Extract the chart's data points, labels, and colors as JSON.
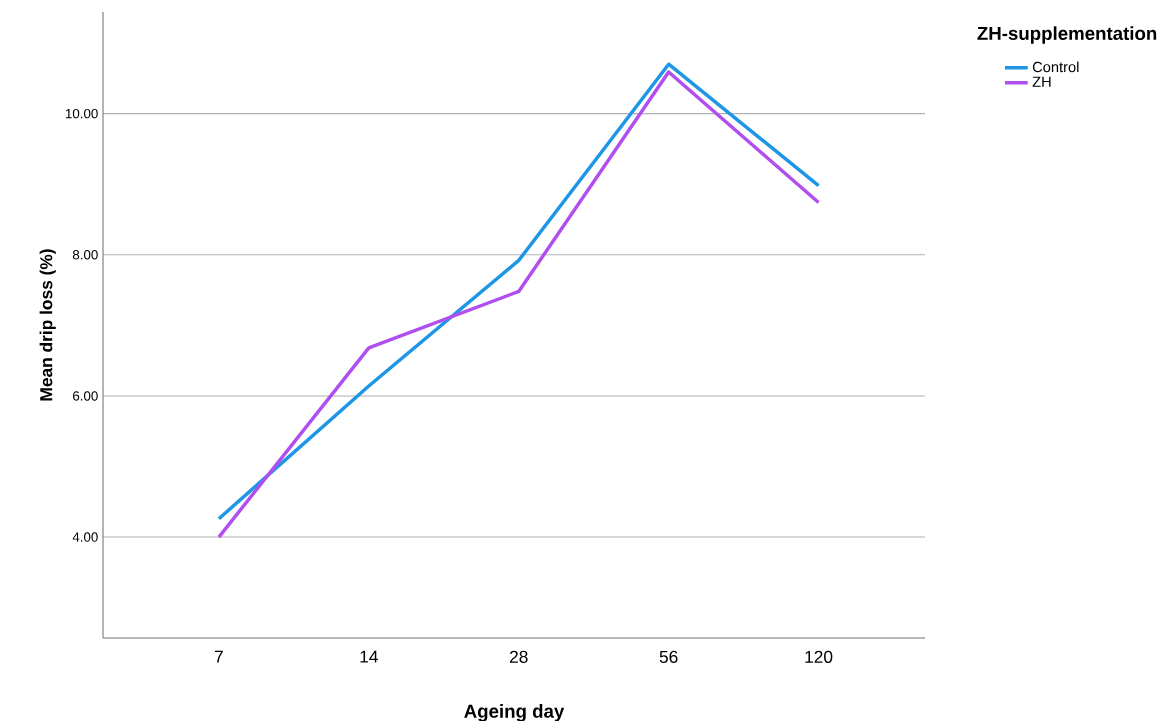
{
  "chart_data": {
    "type": "line",
    "xlabel": "Ageing day",
    "ylabel": "Mean drip loss (%)",
    "legend_title": "ZH-supplementation",
    "categories": [
      "7",
      "14",
      "28",
      "56",
      "120"
    ],
    "series": [
      {
        "name": "Control",
        "color": "#1e96e6",
        "values": [
          4.26,
          6.14,
          7.92,
          10.7,
          8.98
        ]
      },
      {
        "name": "ZH",
        "color": "#b04ef0",
        "values": [
          4.0,
          6.68,
          7.48,
          10.59,
          8.74
        ]
      }
    ],
    "ylim": [
      2.57,
      11.44
    ],
    "yticks": [
      {
        "value": 4,
        "label": "4.00"
      },
      {
        "value": 6,
        "label": "6.00"
      },
      {
        "value": 8,
        "label": "8.00"
      },
      {
        "value": 10,
        "label": "10.00"
      }
    ],
    "grid": "y",
    "legend": "top right",
    "marker": "none",
    "line_style": "solid"
  }
}
